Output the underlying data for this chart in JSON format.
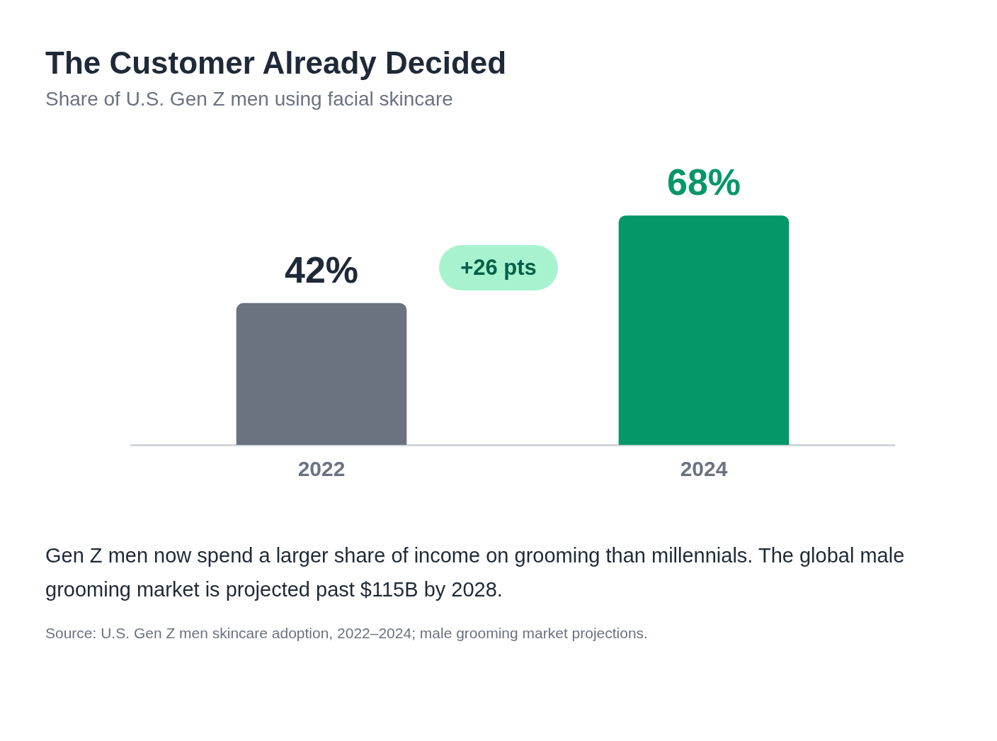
{
  "chart_data": {
    "type": "bar",
    "title": "The Customer Already Decided",
    "subtitle": "Share of U.S. Gen Z men using facial skincare",
    "categories": [
      "2022",
      "2024"
    ],
    "values": [
      42,
      68
    ],
    "colors": [
      "#6b7280",
      "#059669"
    ],
    "value_labels": [
      "42%",
      "68%"
    ],
    "annotations": [
      "+26 pts",
      "Gen Z men now spend a larger share of income on grooming than millennials. The global male grooming market is projected past $115B by 2028.",
      "Source: U.S. Gen Z men skincare adoption, 2022–2024; male grooming market projections."
    ],
    "grid": false,
    "legend": false
  }
}
